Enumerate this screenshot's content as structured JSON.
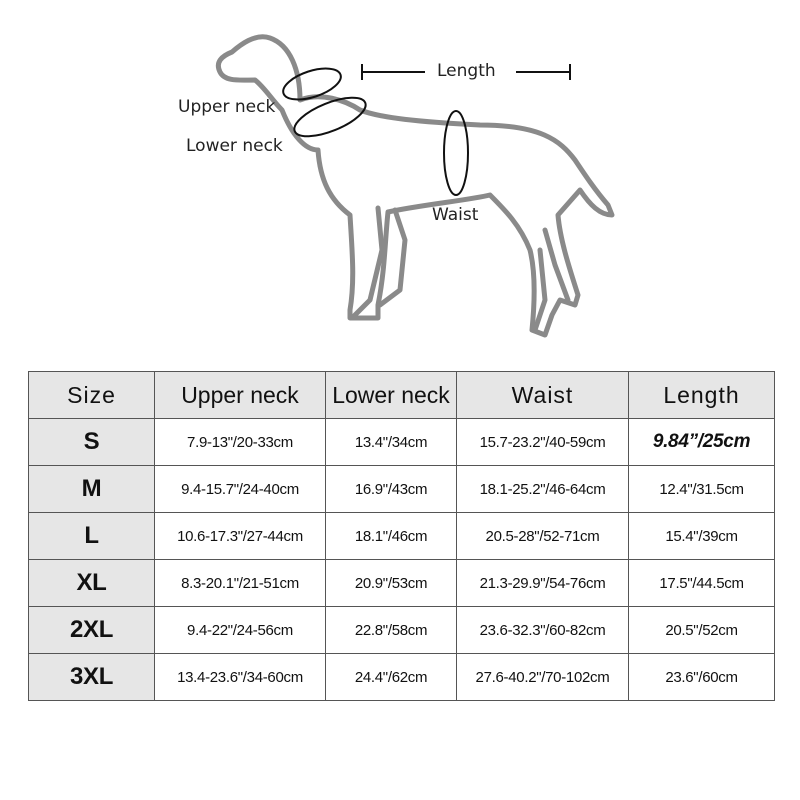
{
  "diagram": {
    "labels": {
      "upper_neck": "Upper neck",
      "lower_neck": "Lower neck",
      "length": "Length",
      "waist": "Waist"
    },
    "line_color": "#8a8a8a"
  },
  "table": {
    "headers": [
      "Size",
      "Upper neck",
      "Lower neck",
      "Waist",
      "Length"
    ],
    "rows": [
      {
        "size": "S",
        "upper_neck": "7.9-13\"/20-33cm",
        "lower_neck": "13.4\"/34cm",
        "waist": "15.7-23.2\"/40-59cm",
        "length": "9.84”/25cm"
      },
      {
        "size": "M",
        "upper_neck": "9.4-15.7\"/24-40cm",
        "lower_neck": "16.9\"/43cm",
        "waist": "18.1-25.2\"/46-64cm",
        "length": "12.4\"/31.5cm"
      },
      {
        "size": "L",
        "upper_neck": "10.6-17.3\"/27-44cm",
        "lower_neck": "18.1\"/46cm",
        "waist": "20.5-28\"/52-71cm",
        "length": "15.4\"/39cm"
      },
      {
        "size": "XL",
        "upper_neck": "8.3-20.1\"/21-51cm",
        "lower_neck": "20.9\"/53cm",
        "waist": "21.3-29.9\"/54-76cm",
        "length": "17.5\"/44.5cm"
      },
      {
        "size": "2XL",
        "upper_neck": "9.4-22\"/24-56cm",
        "lower_neck": "22.8\"/58cm",
        "waist": "23.6-32.3\"/60-82cm",
        "length": "20.5\"/52cm"
      },
      {
        "size": "3XL",
        "upper_neck": "13.4-23.6\"/34-60cm",
        "lower_neck": "24.4\"/62cm",
        "waist": "27.6-40.2\"/70-102cm",
        "length": "23.6\"/60cm"
      }
    ]
  }
}
